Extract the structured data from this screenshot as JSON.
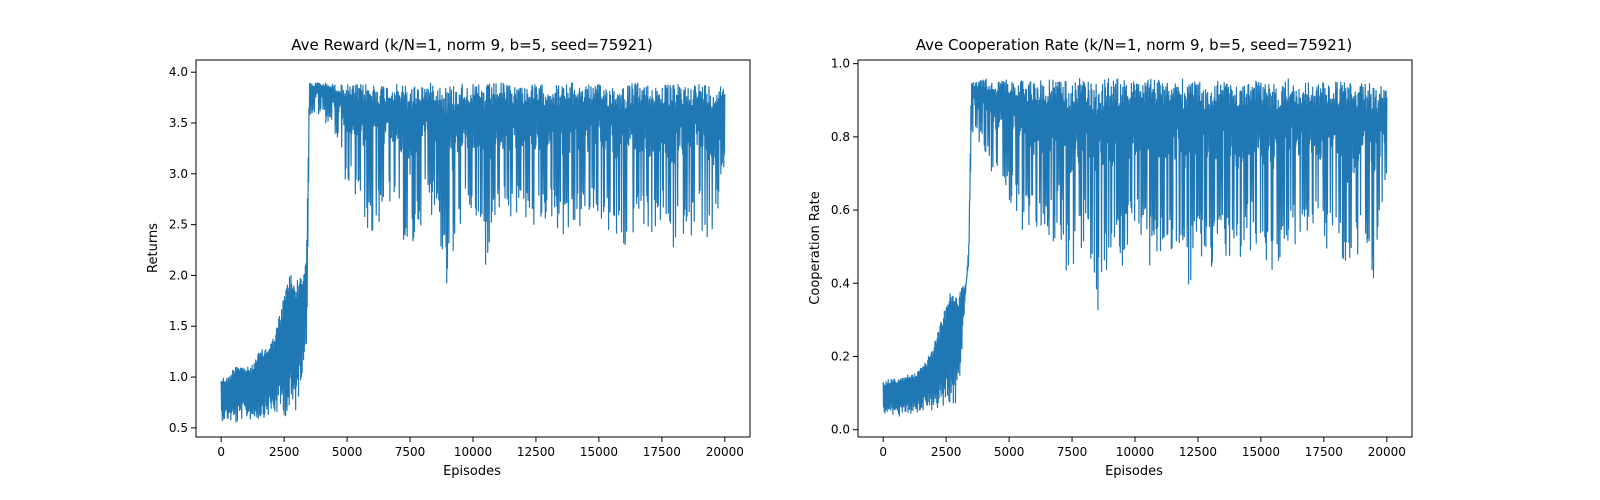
{
  "chart_data": [
    {
      "type": "line",
      "title": "Ave Reward (k/N=1, norm 9, b=5, seed=75921)",
      "xlabel": "Episodes",
      "ylabel": "Returns",
      "xlim": [
        -1000,
        21000
      ],
      "ylim": [
        0.41,
        4.12
      ],
      "xticks": [
        0,
        2500,
        5000,
        7500,
        10000,
        12500,
        15000,
        17500,
        20000
      ],
      "xtick_labels": [
        "0",
        "2500",
        "5000",
        "7500",
        "10000",
        "12500",
        "15000",
        "17500",
        "20000"
      ],
      "yticks": [
        0.5,
        1.0,
        1.5,
        2.0,
        2.5,
        3.0,
        3.5,
        4.0
      ],
      "ytick_labels": [
        "0.5",
        "1.0",
        "1.5",
        "2.0",
        "2.5",
        "3.0",
        "3.5",
        "4.0"
      ],
      "color": "#1f77b4",
      "series": [
        {
          "x": [
            0,
            300,
            600,
            900,
            1200,
            1500,
            1800,
            2100,
            2400,
            2700,
            3000,
            3300,
            3400,
            3500,
            4000,
            4500,
            5000,
            5500,
            6000,
            6500,
            7000,
            7500,
            8000,
            8500,
            9000,
            9500,
            10000,
            10500,
            11000,
            11500,
            12000,
            12500,
            13000,
            13500,
            14000,
            14500,
            15000,
            15500,
            16000,
            16500,
            17000,
            17500,
            18000,
            18500,
            19000,
            19500,
            20000
          ],
          "y_high": [
            1.0,
            1.0,
            1.15,
            1.1,
            1.1,
            1.25,
            1.3,
            1.4,
            1.7,
            2.05,
            1.95,
            2.05,
            2.35,
            3.9,
            3.9,
            3.88,
            3.88,
            3.88,
            3.9,
            3.88,
            3.88,
            3.88,
            3.88,
            3.9,
            3.88,
            3.9,
            3.88,
            3.88,
            3.9,
            3.88,
            3.88,
            3.88,
            3.88,
            3.88,
            3.9,
            3.88,
            3.88,
            3.88,
            3.88,
            3.9,
            3.88,
            3.88,
            3.88,
            3.88,
            3.9,
            3.88,
            3.88
          ],
          "y_low": [
            0.55,
            0.55,
            0.5,
            0.58,
            0.55,
            0.55,
            0.58,
            0.58,
            0.6,
            0.5,
            0.6,
            1.15,
            1.2,
            3.55,
            3.55,
            3.4,
            2.8,
            2.6,
            2.2,
            2.6,
            2.6,
            1.87,
            2.6,
            2.6,
            1.6,
            2.4,
            2.5,
            1.92,
            2.5,
            2.4,
            2.5,
            2.3,
            2.5,
            2.3,
            2.3,
            2.4,
            2.5,
            2.25,
            2.05,
            2.4,
            2.3,
            2.4,
            2.1,
            2.4,
            2.4,
            2.0,
            3.05
          ]
        }
      ]
    },
    {
      "type": "line",
      "title": "Ave Cooperation Rate (k/N=1, norm 9, b=5, seed=75921)",
      "xlabel": "Episodes",
      "ylabel": "Cooperation Rate",
      "xlim": [
        -1000,
        21000
      ],
      "ylim": [
        -0.02,
        1.01
      ],
      "xticks": [
        0,
        2500,
        5000,
        7500,
        10000,
        12500,
        15000,
        17500,
        20000
      ],
      "xtick_labels": [
        "0",
        "2500",
        "5000",
        "7500",
        "10000",
        "12500",
        "15000",
        "17500",
        "20000"
      ],
      "yticks": [
        0.0,
        0.2,
        0.4,
        0.6,
        0.8,
        1.0
      ],
      "ytick_labels": [
        "0.0",
        "0.2",
        "0.4",
        "0.6",
        "0.8",
        "1.0"
      ],
      "color": "#1f77b4",
      "series": [
        {
          "x": [
            0,
            300,
            600,
            900,
            1200,
            1500,
            1800,
            2100,
            2400,
            2700,
            3000,
            3300,
            3400,
            3500,
            4000,
            4500,
            5000,
            5500,
            6000,
            6500,
            7000,
            7500,
            8000,
            8500,
            9000,
            9500,
            10000,
            10500,
            11000,
            11500,
            12000,
            12500,
            13000,
            13500,
            14000,
            14500,
            15000,
            15500,
            16000,
            16500,
            17000,
            17500,
            18000,
            18500,
            19000,
            19500,
            20000
          ],
          "y_high": [
            0.13,
            0.14,
            0.14,
            0.15,
            0.15,
            0.17,
            0.2,
            0.25,
            0.32,
            0.39,
            0.38,
            0.4,
            0.51,
            0.95,
            0.96,
            0.95,
            0.96,
            0.96,
            0.95,
            0.96,
            0.95,
            0.96,
            0.96,
            0.95,
            0.96,
            0.96,
            0.95,
            0.96,
            0.96,
            0.95,
            0.96,
            0.95,
            0.95,
            0.96,
            0.95,
            0.95,
            0.96,
            0.95,
            0.96,
            0.95,
            0.95,
            0.95,
            0.95,
            0.95,
            0.95,
            0.95,
            0.93
          ],
          "y_low": [
            0.04,
            0.04,
            0.03,
            0.04,
            0.04,
            0.04,
            0.05,
            0.04,
            0.05,
            0.05,
            0.06,
            0.4,
            0.45,
            0.8,
            0.75,
            0.65,
            0.6,
            0.55,
            0.5,
            0.48,
            0.55,
            0.34,
            0.5,
            0.27,
            0.42,
            0.45,
            0.5,
            0.45,
            0.45,
            0.5,
            0.38,
            0.45,
            0.4,
            0.45,
            0.4,
            0.5,
            0.45,
            0.37,
            0.45,
            0.48,
            0.5,
            0.45,
            0.48,
            0.32,
            0.5,
            0.34,
            0.66
          ]
        }
      ]
    }
  ]
}
